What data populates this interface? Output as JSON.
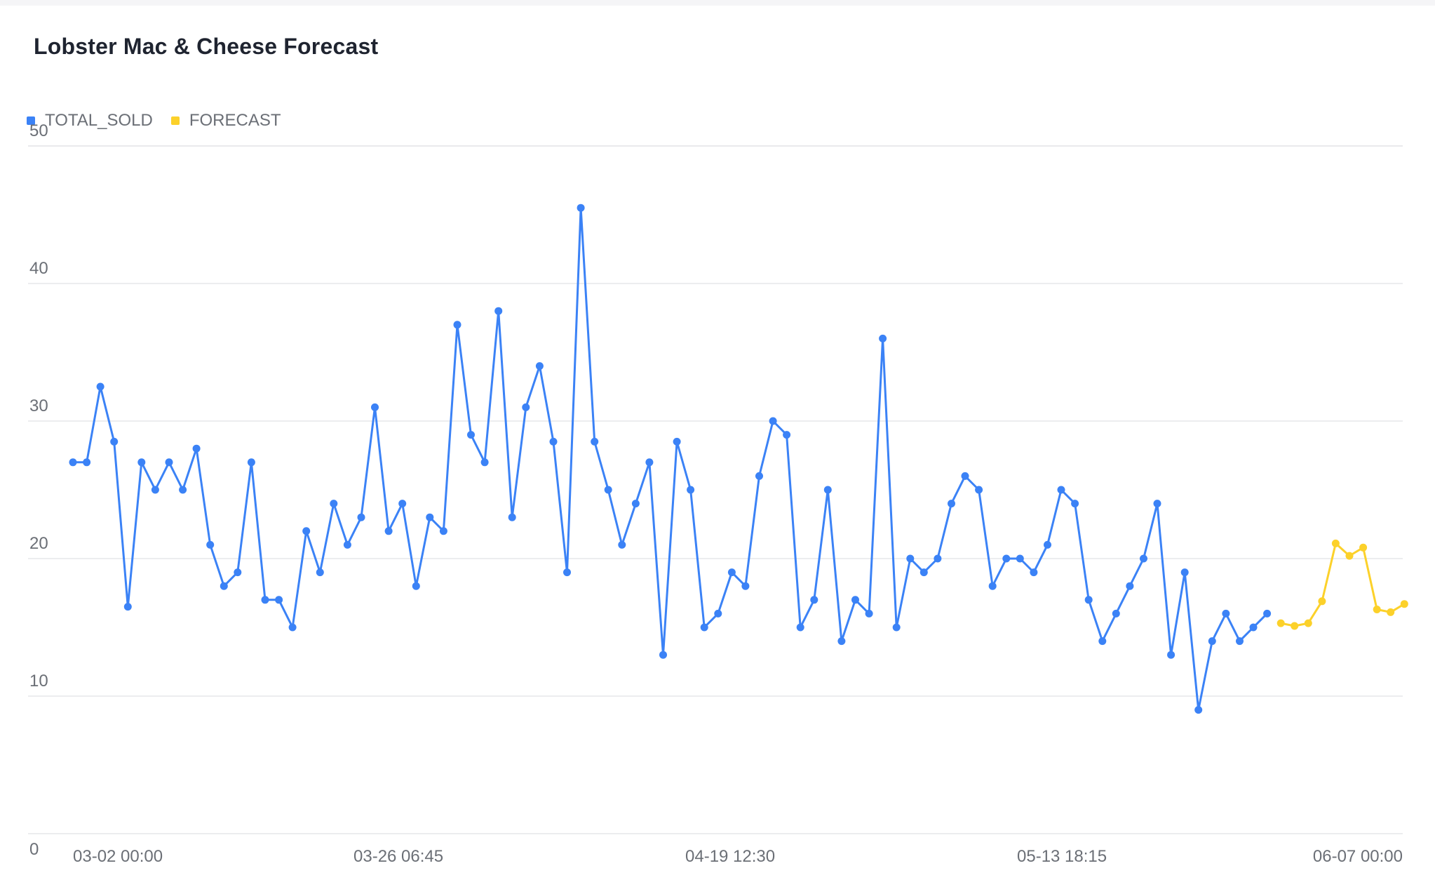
{
  "chart_data": {
    "type": "line",
    "title": "Lobster Mac & Cheese Forecast",
    "xlabel": "",
    "ylabel": "",
    "ylim": [
      0,
      50
    ],
    "yticks": [
      "0",
      "10",
      "20",
      "30",
      "40",
      "50"
    ],
    "xtick_labels": [
      "03-02 00:00",
      "03-26 06:45",
      "04-19 12:30",
      "05-13 18:15",
      "06-07 00:00"
    ],
    "grid": true,
    "legend_position": "top-left",
    "series": [
      {
        "name": "TOTAL_SOLD",
        "color": "#3b82f6",
        "values": [
          27,
          27,
          32.5,
          28.5,
          16.5,
          27,
          25,
          27,
          25,
          28,
          21,
          18,
          19,
          27,
          17,
          17,
          15,
          22,
          19,
          24,
          21,
          23,
          31,
          22,
          24,
          18,
          23,
          22,
          37,
          29,
          27,
          38,
          23,
          31,
          34,
          28.5,
          19,
          45.5,
          28.5,
          25,
          21,
          24,
          27,
          13,
          28.5,
          25,
          15,
          16,
          19,
          18,
          26,
          30,
          29,
          15,
          17,
          25,
          14,
          17,
          16,
          36,
          15,
          20,
          19,
          20,
          24,
          26,
          25,
          18,
          20,
          20,
          19,
          21,
          25,
          24,
          17,
          14,
          16,
          18,
          20,
          24,
          13,
          19,
          9,
          14,
          16,
          14,
          15,
          16
        ]
      },
      {
        "name": "FORECAST",
        "color": "#fcd12a",
        "values": [
          15.3,
          15.1,
          15.3,
          16.9,
          21.1,
          20.2,
          20.8,
          16.3,
          16.1,
          16.7
        ]
      }
    ]
  }
}
